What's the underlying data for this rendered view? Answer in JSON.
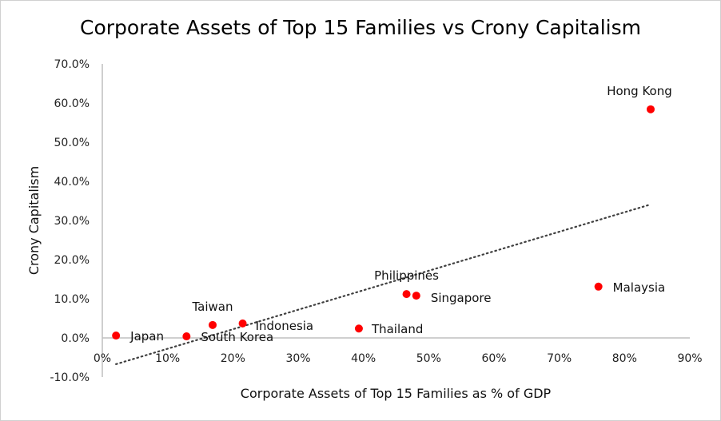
{
  "chart_data": {
    "type": "scatter",
    "title": "Corporate Assets of Top 15 Families vs Crony Capitalism",
    "xlabel": "Corporate Assets of Top 15 Families as % of GDP",
    "ylabel": "Crony Capitalism",
    "xlim": [
      0,
      90
    ],
    "ylim": [
      -10,
      70
    ],
    "x_ticks": [
      "0%",
      "10%",
      "20%",
      "30%",
      "40%",
      "50%",
      "60%",
      "70%",
      "80%",
      "90%"
    ],
    "y_ticks": [
      "-10.0%",
      "0.0%",
      "10.0%",
      "20.0%",
      "30.0%",
      "40.0%",
      "50.0%",
      "60.0%",
      "70.0%"
    ],
    "grid": false,
    "marker_color": "#ff0000",
    "trendline": {
      "style": "dotted",
      "color": "#404040",
      "x": [
        2.1,
        84.0
      ],
      "y": [
        -6.7,
        34.1
      ]
    },
    "points": [
      {
        "label": "Hong Kong",
        "x": 84.0,
        "y": 58.4
      },
      {
        "label": "Malaysia",
        "x": 76.0,
        "y": 13.1
      },
      {
        "label": "Singapore",
        "x": 48.1,
        "y": 10.8
      },
      {
        "label": "Philippines",
        "x": 46.6,
        "y": 11.2
      },
      {
        "label": "Thailand",
        "x": 39.3,
        "y": 2.4
      },
      {
        "label": "Indonesia",
        "x": 21.5,
        "y": 3.7
      },
      {
        "label": "Taiwan",
        "x": 16.9,
        "y": 3.3
      },
      {
        "label": "South Korea",
        "x": 12.9,
        "y": 0.4
      },
      {
        "label": "Japan",
        "x": 2.1,
        "y": 0.6
      }
    ]
  }
}
